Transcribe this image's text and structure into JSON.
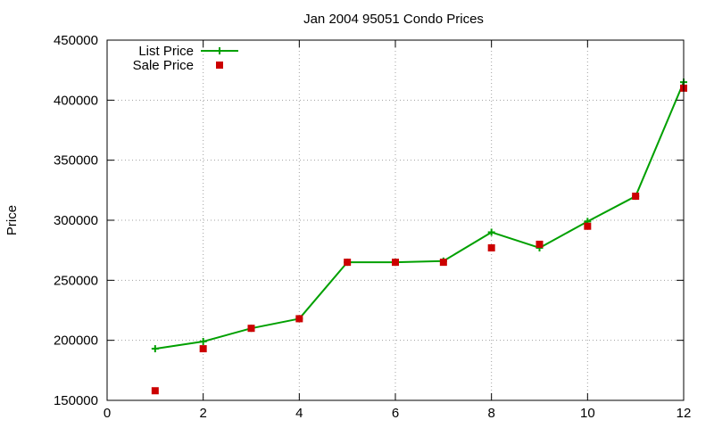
{
  "chart_data": {
    "type": "line",
    "title": "Jan 2004 95051 Condo Prices",
    "xlabel": "",
    "ylabel": "Price",
    "xlim": [
      0,
      12
    ],
    "ylim": [
      150000,
      450000
    ],
    "xticks": [
      0,
      2,
      4,
      6,
      8,
      10,
      12
    ],
    "yticks": [
      150000,
      200000,
      250000,
      300000,
      350000,
      400000,
      450000
    ],
    "grid": true,
    "legend_position": "top-left",
    "series": [
      {
        "name": "List Price",
        "style": "line+points",
        "marker": "plus",
        "color": "#00a000",
        "x": [
          1,
          2,
          3,
          4,
          5,
          6,
          7,
          8,
          9,
          10,
          11,
          12
        ],
        "y": [
          193000,
          199000,
          210000,
          218000,
          265000,
          265000,
          266000,
          290000,
          277000,
          299000,
          320000,
          415000
        ]
      },
      {
        "name": "Sale Price",
        "style": "points",
        "marker": "square",
        "color": "#cc0000",
        "x": [
          1,
          2,
          3,
          4,
          5,
          6,
          7,
          8,
          9,
          10,
          11,
          12
        ],
        "y": [
          158000,
          193000,
          210000,
          218000,
          265000,
          265000,
          265000,
          277000,
          280000,
          295000,
          320000,
          410000
        ]
      }
    ]
  }
}
